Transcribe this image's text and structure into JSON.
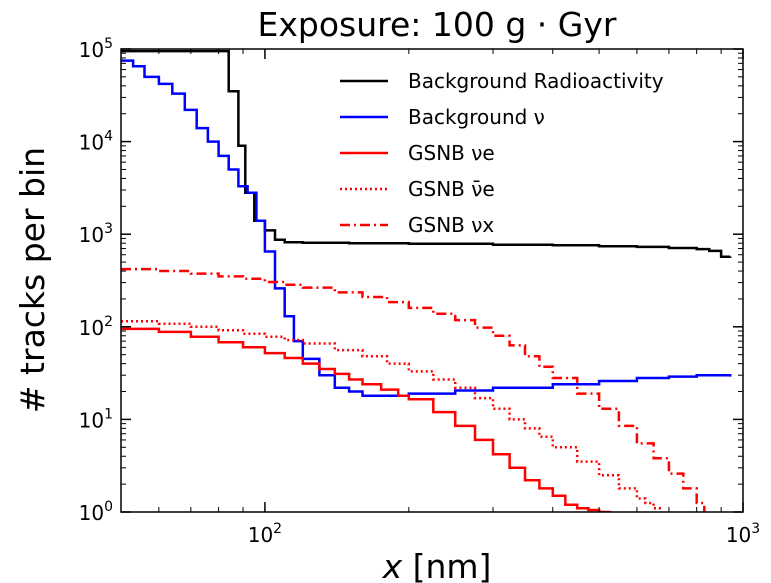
{
  "chart_data": {
    "type": "line",
    "title": "Exposure: 100 g · Gyr",
    "xlabel": "x [nm]",
    "ylabel": "# tracks per bin",
    "xscale": "log",
    "yscale": "log",
    "xlim": [
      50,
      1000
    ],
    "ylim": [
      1,
      100000
    ],
    "x_ticks": [
      {
        "value": 100,
        "base": "10",
        "exp": "2"
      },
      {
        "value": 1000,
        "base": "10",
        "exp": "3"
      }
    ],
    "y_ticks": [
      {
        "value": 1,
        "base": "10",
        "exp": "0"
      },
      {
        "value": 10,
        "base": "10",
        "exp": "1"
      },
      {
        "value": 100,
        "base": "10",
        "exp": "2"
      },
      {
        "value": 1000,
        "base": "10",
        "exp": "3"
      },
      {
        "value": 10000,
        "base": "10",
        "exp": "4"
      },
      {
        "value": 100000,
        "base": "10",
        "exp": "5"
      }
    ],
    "legend_position": "top-right",
    "grid": false,
    "series": [
      {
        "name": "Background Radioactivity",
        "color": "#000000",
        "dash": "solid",
        "x": [
          50,
          80,
          84,
          88,
          91,
          95,
          100,
          105,
          110,
          120,
          150,
          200,
          300,
          400,
          500,
          600,
          700,
          800,
          850,
          900,
          940
        ],
        "y": [
          95000,
          95000,
          35000,
          9000,
          2800,
          1400,
          1100,
          870,
          820,
          810,
          800,
          790,
          770,
          760,
          740,
          730,
          710,
          690,
          660,
          570,
          575
        ]
      },
      {
        "name": "Background ν",
        "color": "#0000ff",
        "dash": "solid",
        "x": [
          50,
          53,
          56,
          60,
          64,
          68,
          72,
          76,
          80,
          84,
          88,
          92,
          96,
          100,
          105,
          110,
          115,
          120,
          130,
          140,
          150,
          160,
          175,
          200,
          250,
          300,
          400,
          500,
          600,
          700,
          800,
          900,
          940
        ],
        "y": [
          75000,
          65000,
          50000,
          42000,
          33000,
          22000,
          14000,
          10000,
          7000,
          5000,
          3300,
          2800,
          1400,
          650,
          260,
          130,
          70,
          45,
          30,
          22,
          20,
          18,
          18,
          19,
          20.5,
          22,
          24,
          26,
          28,
          29,
          30,
          30,
          29
        ]
      },
      {
        "name": "GSNB νe",
        "color": "#ff0000",
        "dash": "solid",
        "x": [
          50,
          60,
          70,
          80,
          90,
          100,
          110,
          120,
          130,
          140,
          150,
          160,
          175,
          190,
          200,
          225,
          250,
          275,
          300,
          325,
          350,
          375,
          400,
          425,
          450,
          475,
          500,
          530
        ],
        "y": [
          95,
          88,
          78,
          68,
          60,
          52,
          46,
          40,
          35,
          31,
          27,
          24,
          21,
          18,
          16.5,
          12,
          8.5,
          6,
          4.2,
          3,
          2.2,
          1.8,
          1.5,
          1.2,
          1.1,
          1.05,
          1.0,
          1.0
        ]
      },
      {
        "name": "GSNB ν̄e",
        "color": "#ff0000",
        "dash": "dotted",
        "x": [
          50,
          60,
          70,
          80,
          90,
          100,
          110,
          120,
          140,
          160,
          180,
          200,
          225,
          250,
          275,
          300,
          325,
          350,
          375,
          400,
          450,
          500,
          550,
          600,
          625,
          650,
          670
        ],
        "y": [
          115,
          108,
          100,
          92,
          84,
          78,
          72,
          66,
          56,
          48,
          40,
          33,
          27,
          22,
          17,
          13,
          10,
          8,
          6.5,
          5,
          3.5,
          2.5,
          1.8,
          1.4,
          1.25,
          1.1,
          1.0
        ]
      },
      {
        "name": "GSNB νx",
        "color": "#ff0000",
        "dash": "dashdot",
        "x": [
          50,
          60,
          70,
          80,
          90,
          100,
          110,
          120,
          140,
          160,
          180,
          200,
          225,
          250,
          275,
          300,
          325,
          350,
          375,
          400,
          450,
          500,
          550,
          600,
          650,
          700,
          750,
          800,
          830
        ],
        "y": [
          420,
          400,
          375,
          350,
          330,
          305,
          285,
          265,
          235,
          210,
          185,
          160,
          138,
          118,
          98,
          80,
          63,
          48,
          37,
          28,
          19,
          13,
          8.5,
          5.5,
          3.8,
          2.6,
          1.8,
          1.25,
          1.0
        ]
      }
    ]
  }
}
